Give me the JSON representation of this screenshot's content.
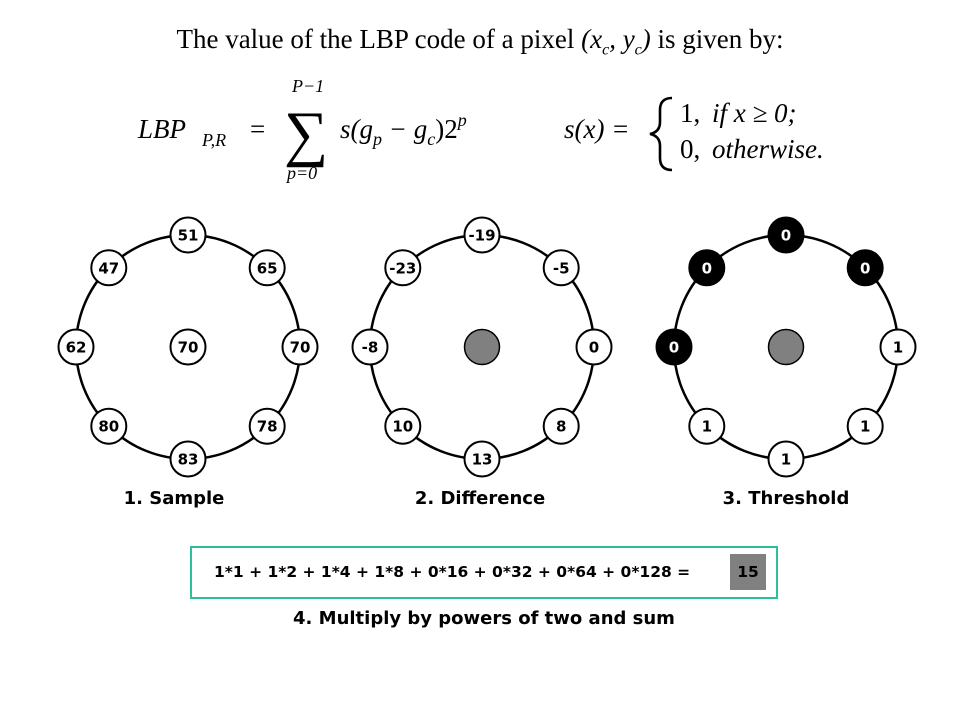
{
  "intro": {
    "text": "The value of the LBP code of a  pixel",
    "pixel_expr": "(x",
    "c_sub": "c",
    "comma": ", y",
    "c_sub2": "c",
    "close": ")",
    "tail": "is given by:"
  },
  "formula": {
    "lhs": "LBP",
    "lhs_sub": "P,R",
    "equals": "=",
    "sum_upper": "P−1",
    "sum_lower": "p=0",
    "sigma": "∑",
    "term": "s(g",
    "term_p": "p",
    "minus": " − g",
    "term_c": "c",
    "close": ")2",
    "exp_p": "p",
    "s_def": "s(x) =",
    "case1_a": "1,",
    "case1_b": "if  x  ≥  0;",
    "case2_a": "0,",
    "case2_b": "otherwise."
  },
  "diagrams": [
    {
      "center": "70",
      "neighbors": [
        "51",
        "65",
        "70",
        "78",
        "83",
        "80",
        "62",
        "47"
      ],
      "label": "1. Sample"
    },
    {
      "center": "",
      "neighbors": [
        "-19",
        "-5",
        "0",
        "8",
        "13",
        "10",
        "-8",
        "-23"
      ],
      "label": "2. Difference"
    },
    {
      "center": "",
      "neighbors": [
        "0",
        "0",
        "1",
        "1",
        "1",
        "1",
        "0",
        "0"
      ],
      "label": "3. Threshold"
    }
  ],
  "sum": {
    "expression": "1*1 + 1*2 + 1*4 + 1*8 + 0*16 + 0*32 + 0*64 + 0*128 =",
    "result": "15",
    "label": "4. Multiply by powers of two and sum"
  },
  "colors": {
    "box_border": "#2ebf9a",
    "result_fill": "#808080",
    "center_fill": "#808080",
    "zero_fill": "#000000",
    "one_fill": "#ffffff"
  }
}
